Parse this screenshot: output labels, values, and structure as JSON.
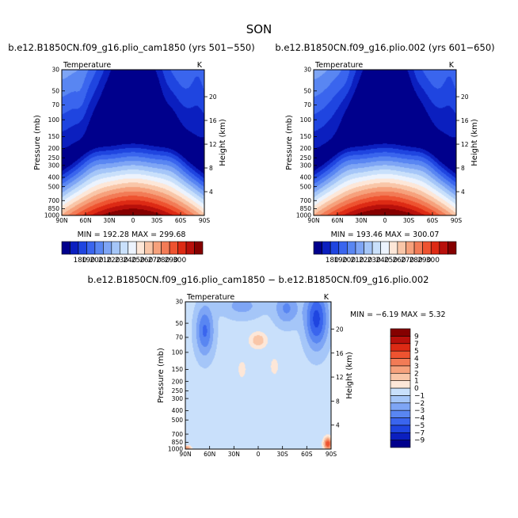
{
  "figure": {
    "season": "SON",
    "colors": {
      "temp_scale": [
        "#00008c",
        "#0b1fbf",
        "#1f45e0",
        "#3a65ee",
        "#5986f2",
        "#7ea5f5",
        "#a5c6f8",
        "#c9e0fb",
        "#ecf3fd",
        "#fde7d8",
        "#f9c6a8",
        "#f6a17c",
        "#f27b56",
        "#ee5330",
        "#dd2a14",
        "#b8100b",
        "#850000"
      ],
      "diff_scale": [
        "#00008c",
        "#0b1fbf",
        "#1f45e0",
        "#3a65ee",
        "#5986f2",
        "#7ea5f5",
        "#a5c6f8",
        "#c9e0fb",
        "#fde7d8",
        "#f9c6a8",
        "#f6a17c",
        "#f27b56",
        "#ee5330",
        "#dd2a14",
        "#b8100b",
        "#850000"
      ]
    }
  },
  "chart_data": [
    {
      "type": "heatmap",
      "title": "b.e12.B1850CN.f09_g16.plio_cam1850 (yrs 501−550)",
      "subtitle": "Temperature",
      "units": "K",
      "xlabel": "",
      "ylabel": "Pressure (mb)",
      "y2label": "Height (km)",
      "x_tick_labels": [
        "90N",
        "60N",
        "30N",
        "0",
        "30S",
        "60S",
        "90S"
      ],
      "x_values": [
        90,
        60,
        30,
        0,
        -30,
        -60,
        -90
      ],
      "y_tick_labels": [
        "30",
        "50",
        "70",
        "100",
        "150",
        "200",
        "250",
        "300",
        "400",
        "500",
        "700",
        "850",
        "1000"
      ],
      "y_values": [
        30,
        50,
        70,
        100,
        150,
        200,
        250,
        300,
        400,
        500,
        700,
        850,
        1000
      ],
      "y2_tick_labels": [
        "4",
        "8",
        "12",
        "16",
        "20"
      ],
      "y2_values": [
        4,
        8,
        12,
        16,
        20
      ],
      "stats": "MIN = 192.28   MAX = 299.68",
      "min": 192.28,
      "max": 299.68,
      "colorbar_labels": [
        "180",
        "190",
        "200",
        "210",
        "220",
        "230",
        "240",
        "250",
        "260",
        "270",
        "280",
        "290",
        "300"
      ],
      "colorbar_levels": [
        180,
        190,
        200,
        210,
        220,
        230,
        240,
        250,
        260,
        270,
        280,
        290,
        300
      ]
    },
    {
      "type": "heatmap",
      "title": "b.e12.B1850CN.f09_g16.plio.002 (yrs 601−650)",
      "subtitle": "Temperature",
      "units": "K",
      "xlabel": "",
      "ylabel": "Pressure (mb)",
      "y2label": "Height (km)",
      "x_tick_labels": [
        "90N",
        "60N",
        "30N",
        "0",
        "30S",
        "60S",
        "90S"
      ],
      "x_values": [
        90,
        60,
        30,
        0,
        -30,
        -60,
        -90
      ],
      "y_tick_labels": [
        "30",
        "50",
        "70",
        "100",
        "150",
        "200",
        "250",
        "300",
        "400",
        "500",
        "700",
        "850",
        "1000"
      ],
      "y_values": [
        30,
        50,
        70,
        100,
        150,
        200,
        250,
        300,
        400,
        500,
        700,
        850,
        1000
      ],
      "y2_tick_labels": [
        "4",
        "8",
        "12",
        "16",
        "20"
      ],
      "y2_values": [
        4,
        8,
        12,
        16,
        20
      ],
      "stats": "MIN = 193.46   MAX = 300.07",
      "min": 193.46,
      "max": 300.07,
      "colorbar_labels": [
        "180",
        "190",
        "200",
        "210",
        "220",
        "230",
        "240",
        "250",
        "260",
        "270",
        "280",
        "290",
        "300"
      ],
      "colorbar_levels": [
        180,
        190,
        200,
        210,
        220,
        230,
        240,
        250,
        260,
        270,
        280,
        290,
        300
      ]
    },
    {
      "type": "heatmap",
      "title": "b.e12.B1850CN.f09_g16.plio_cam1850 − b.e12.B1850CN.f09_g16.plio.002",
      "subtitle": "Temperature",
      "units": "K",
      "xlabel": "",
      "ylabel": "Pressure (mb)",
      "y2label": "Height (km)",
      "x_tick_labels": [
        "90N",
        "60N",
        "30N",
        "0",
        "30S",
        "60S",
        "90S"
      ],
      "x_values": [
        90,
        60,
        30,
        0,
        -30,
        -60,
        -90
      ],
      "y_tick_labels": [
        "30",
        "50",
        "70",
        "100",
        "150",
        "200",
        "250",
        "300",
        "400",
        "500",
        "700",
        "850",
        "1000"
      ],
      "y_values": [
        30,
        50,
        70,
        100,
        150,
        200,
        250,
        300,
        400,
        500,
        700,
        850,
        1000
      ],
      "y2_tick_labels": [
        "4",
        "8",
        "12",
        "16",
        "20"
      ],
      "y2_values": [
        4,
        8,
        12,
        16,
        20
      ],
      "stats": "MIN =  −6.19   MAX =    5.32",
      "min": -6.19,
      "max": 5.32,
      "colorbar_labels": [
        "9",
        "7",
        "5",
        "4",
        "3",
        "2",
        "1",
        "0",
        "−1",
        "−2",
        "−3",
        "−4",
        "−5",
        "−7",
        "−9"
      ],
      "colorbar_levels": [
        9,
        7,
        5,
        4,
        3,
        2,
        1,
        0,
        -1,
        -2,
        -3,
        -4,
        -5,
        -7,
        -9
      ]
    }
  ]
}
